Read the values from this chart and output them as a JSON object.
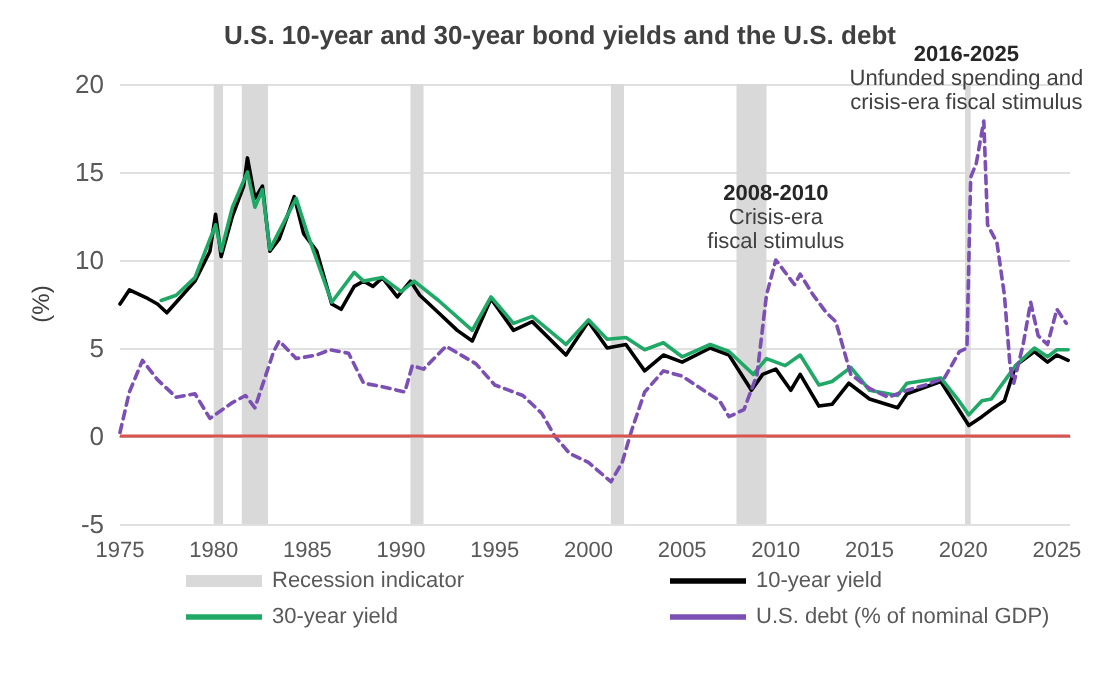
{
  "chart_data": {
    "type": "line",
    "title": "U.S. 10-year and 30-year bond yields and the U.S. debt",
    "ylabel": "(%)",
    "xlim": [
      1975,
      2025.7
    ],
    "xticks": [
      1975,
      1980,
      1985,
      1990,
      1995,
      2000,
      2005,
      2010,
      2015,
      2020,
      2025
    ],
    "ylim": [
      -5,
      20
    ],
    "yticks": [
      -5,
      0,
      5,
      10,
      15,
      20
    ],
    "grid": "y",
    "legend": "bottom",
    "marker": "none",
    "series": [
      {
        "name": "10-year yield",
        "color": "#000000",
        "line_style": "solid",
        "x": [
          1975,
          1975.5,
          1976.5,
          1977,
          1977.5,
          1978,
          1979,
          1979.8,
          1980.1,
          1980.4,
          1981,
          1981.6,
          1981.8,
          1982.2,
          1982.6,
          1983,
          1983.5,
          1984.3,
          1984.8,
          1985.5,
          1986.3,
          1986.8,
          1987.5,
          1988,
          1988.5,
          1989,
          1989.8,
          1990.5,
          1991,
          1992,
          1993,
          1993.8,
          1994.8,
          1996,
          1997,
          1998.8,
          2000,
          2001,
          2002,
          2003,
          2004,
          2005,
          2006.5,
          2007.5,
          2008.7,
          2009.3,
          2010,
          2010.8,
          2011.3,
          2012.3,
          2013,
          2013.9,
          2015,
          2016.5,
          2017,
          2018.8,
          2019.7,
          2020.3,
          2021,
          2021.5,
          2022.2,
          2022.8,
          2023.8,
          2024.5,
          2025,
          2025.6
        ],
        "values": [
          7.5,
          8.3,
          7.8,
          7.5,
          7.0,
          7.6,
          8.8,
          10.5,
          12.6,
          10.2,
          12.5,
          14.2,
          15.8,
          13.5,
          14.2,
          10.5,
          11.2,
          13.6,
          11.5,
          10.5,
          7.5,
          7.2,
          8.5,
          8.8,
          8.5,
          9.0,
          7.9,
          8.8,
          8.0,
          7.0,
          6.0,
          5.4,
          7.8,
          6.0,
          6.5,
          4.6,
          6.5,
          5.0,
          5.2,
          3.7,
          4.6,
          4.2,
          5.0,
          4.6,
          2.6,
          3.5,
          3.8,
          2.6,
          3.5,
          1.7,
          1.8,
          3.0,
          2.1,
          1.6,
          2.4,
          3.1,
          1.6,
          0.6,
          1.1,
          1.5,
          2.0,
          4.0,
          4.8,
          4.2,
          4.6,
          4.3
        ]
      },
      {
        "name": "30-year yield",
        "color": "#1fa866",
        "line_style": "solid",
        "x": [
          1977.2,
          1978,
          1979,
          1980.1,
          1980.4,
          1981,
          1981.8,
          1982.2,
          1982.6,
          1983,
          1984.4,
          1985,
          1986.3,
          1987.5,
          1988,
          1989,
          1990,
          1990.7,
          1992,
          1993.8,
          1994.8,
          1996,
          1997,
          1998.8,
          2000,
          2001,
          2002,
          2003,
          2004,
          2005,
          2006.5,
          2007.5,
          2008.8,
          2009.5,
          2010.5,
          2011.3,
          2012.3,
          2013,
          2014,
          2015,
          2016.5,
          2017,
          2018.8,
          2019.7,
          2020.3,
          2021,
          2021.5,
          2022.8,
          2023.8,
          2024.5,
          2025,
          2025.6
        ],
        "values": [
          7.7,
          8.0,
          9.0,
          12.0,
          10.5,
          13.0,
          15.0,
          13.0,
          14.0,
          10.6,
          13.5,
          11.5,
          7.6,
          9.3,
          8.8,
          9.0,
          8.2,
          8.8,
          7.7,
          6.0,
          7.9,
          6.4,
          6.8,
          5.2,
          6.6,
          5.5,
          5.6,
          4.9,
          5.3,
          4.5,
          5.2,
          4.8,
          3.5,
          4.4,
          4.0,
          4.6,
          2.9,
          3.1,
          3.9,
          2.6,
          2.3,
          3.0,
          3.3,
          2.1,
          1.2,
          2.0,
          2.1,
          4.0,
          5.0,
          4.5,
          4.9,
          4.9
        ]
      },
      {
        "name": "U.S. debt (% of nominal GDP)",
        "color": "#7b4fb3",
        "line_style": "dashed",
        "x": [
          1975,
          1975.5,
          1976.2,
          1977,
          1978,
          1979,
          1979.8,
          1981,
          1981.7,
          1982.2,
          1983.2,
          1983.5,
          1984.4,
          1985.5,
          1986.2,
          1987.2,
          1988,
          1989,
          1990.2,
          1990.6,
          1991.2,
          1992.4,
          1994,
          1995,
          1996.5,
          1997.5,
          1998.2,
          1999,
          2000,
          2001.2,
          2001.8,
          2002.3,
          2003,
          2004,
          2005,
          2006,
          2007,
          2007.5,
          2008.3,
          2009,
          2009.5,
          2010,
          2010.5,
          2011,
          2011.3,
          2012,
          2012.7,
          2013.2,
          2014,
          2015,
          2016,
          2017,
          2018,
          2019,
          2019.8,
          2020.2,
          2020.4,
          2020.7,
          2021.1,
          2021.3,
          2021.8,
          2022.2,
          2022.5,
          2022.7,
          2023.2,
          2023.6,
          2024,
          2024.5,
          2025,
          2025.5
        ],
        "values": [
          0.2,
          2.5,
          4.3,
          3.2,
          2.2,
          2.4,
          1.0,
          1.9,
          2.3,
          1.6,
          4.8,
          5.4,
          4.4,
          4.6,
          4.9,
          4.7,
          3.0,
          2.8,
          2.5,
          4.0,
          3.8,
          5.1,
          4.1,
          2.9,
          2.3,
          1.3,
          0.0,
          -1.0,
          -1.5,
          -2.6,
          -1.5,
          0.3,
          2.5,
          3.7,
          3.4,
          2.7,
          2.0,
          1.1,
          1.5,
          3.5,
          8.0,
          10.0,
          9.3,
          8.6,
          9.2,
          8.0,
          7.0,
          6.5,
          3.5,
          2.7,
          2.2,
          2.6,
          2.9,
          3.3,
          4.8,
          5.0,
          14.7,
          15.5,
          17.9,
          12.0,
          11.0,
          8.0,
          4.0,
          3.0,
          5.2,
          7.6,
          5.7,
          5.2,
          7.2,
          6.4
        ]
      }
    ],
    "bands": [
      {
        "axis": "x",
        "from": 1980.0,
        "to": 1980.5,
        "label": "Recession indicator",
        "color": "#d9d9d9"
      },
      {
        "axis": "x",
        "from": 1981.5,
        "to": 1982.9,
        "color": "#d9d9d9"
      },
      {
        "axis": "x",
        "from": 1990.5,
        "to": 1991.2,
        "color": "#d9d9d9"
      },
      {
        "axis": "x",
        "from": 2001.2,
        "to": 2001.9,
        "color": "#d9d9d9"
      },
      {
        "axis": "x",
        "from": 2007.9,
        "to": 2009.5,
        "color": "#d9d9d9"
      },
      {
        "axis": "x",
        "from": 2020.1,
        "to": 2020.4,
        "color": "#d9d9d9"
      }
    ],
    "ref_lines": [
      {
        "axis": "y",
        "value": 0,
        "color": "#d9534f",
        "line_style": "solid"
      }
    ],
    "annotations": [
      {
        "text": "2008-2010\nCrisis-era\nfiscal stimulus",
        "x": 2010,
        "y": 10.0
      },
      {
        "text": "2016-2025\nUnfunded spending and\ncrisis-era fiscal stimulus",
        "x": 2021.1,
        "y": 17.9
      }
    ]
  }
}
